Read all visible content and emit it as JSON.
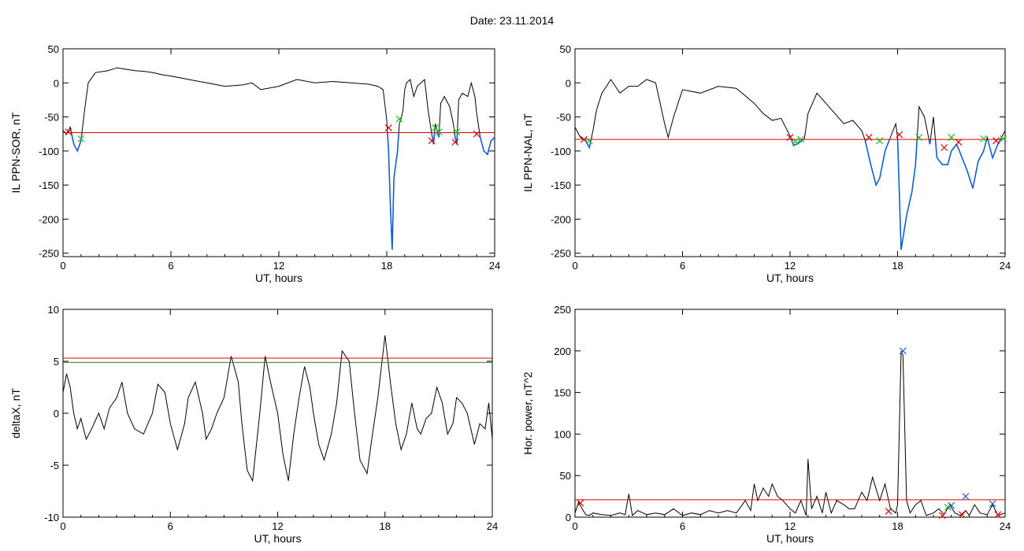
{
  "figure": {
    "title": "Date:  23.11.2014"
  },
  "colors": {
    "signal": "#000000",
    "threshold": "#e00000",
    "threshold2": "#2e7d32",
    "below": "#1060d0",
    "marker_red": "#e00000",
    "marker_green": "#22bb22",
    "marker_blue": "#2060d0"
  },
  "chart_data": [
    {
      "id": "il-sor",
      "type": "line",
      "ylabel": "IL PPN-SOR, nT",
      "xlabel": "UT, hours",
      "xlim": [
        0,
        24
      ],
      "ylim": [
        -255,
        50
      ],
      "xticks": [
        0,
        6,
        12,
        18,
        24
      ],
      "yticks": [
        50,
        0,
        -50,
        -100,
        -150,
        -200,
        -250
      ],
      "threshold": -73,
      "series": [
        {
          "x": [
            0,
            0.2,
            0.4,
            0.6,
            0.8,
            1.0,
            1.2,
            1.4,
            1.8,
            2.5,
            3.0,
            3.5,
            4.0,
            4.5,
            5.0,
            5.5,
            6.0,
            7.0,
            8.0,
            9.0,
            10.0,
            10.5,
            11.0,
            12.0,
            13.0,
            14.0,
            15.0,
            16.0,
            17.0,
            17.5,
            17.8,
            18.0,
            18.1,
            18.2,
            18.3,
            18.4,
            18.5,
            18.6,
            18.7,
            18.8,
            18.9,
            19.0,
            19.1,
            19.3,
            19.5,
            19.7,
            19.9,
            20.1,
            20.3,
            20.5,
            20.6,
            20.7,
            20.8,
            20.9,
            21.0,
            21.2,
            21.5,
            21.7,
            21.8,
            21.9,
            22.0,
            22.2,
            22.5,
            22.7,
            22.9,
            23.0,
            23.2,
            23.4,
            23.6,
            23.8,
            24.0
          ],
          "y": [
            -70,
            -75,
            -65,
            -90,
            -100,
            -85,
            -40,
            0,
            15,
            18,
            22,
            20,
            18,
            17,
            15,
            12,
            10,
            5,
            0,
            -5,
            -3,
            0,
            -10,
            -5,
            5,
            0,
            2,
            0,
            -2,
            -5,
            -10,
            -55,
            -100,
            -180,
            -245,
            -140,
            -120,
            -100,
            -60,
            -52,
            -40,
            -10,
            0,
            5,
            -20,
            -5,
            0,
            5,
            -40,
            -75,
            -90,
            -60,
            -70,
            -80,
            -30,
            -20,
            -35,
            -60,
            -80,
            -90,
            -25,
            -15,
            -20,
            0,
            -20,
            -45,
            -80,
            -100,
            -105,
            -85,
            -80
          ]
        }
      ],
      "markers": [
        {
          "x": 0.3,
          "y": -72,
          "color": "red"
        },
        {
          "x": 1.0,
          "y": -82,
          "color": "green"
        },
        {
          "x": 18.1,
          "y": -66,
          "color": "red"
        },
        {
          "x": 18.7,
          "y": -53,
          "color": "green"
        },
        {
          "x": 20.5,
          "y": -85,
          "color": "red"
        },
        {
          "x": 20.7,
          "y": -66,
          "color": "green"
        },
        {
          "x": 20.9,
          "y": -72,
          "color": "green"
        },
        {
          "x": 21.8,
          "y": -87,
          "color": "red"
        },
        {
          "x": 21.9,
          "y": -72,
          "color": "green"
        },
        {
          "x": 23.0,
          "y": -75,
          "color": "red"
        }
      ]
    },
    {
      "id": "il-nal",
      "type": "line",
      "ylabel": "IL PPN-NAL, nT",
      "xlabel": "UT, hours",
      "xlim": [
        0,
        24
      ],
      "ylim": [
        -255,
        50
      ],
      "xticks": [
        0,
        6,
        12,
        18,
        24
      ],
      "yticks": [
        50,
        0,
        -50,
        -100,
        -150,
        -200,
        -250
      ],
      "threshold": -83,
      "series": [
        {
          "x": [
            0,
            0.3,
            0.6,
            0.8,
            1.0,
            1.2,
            1.5,
            2.0,
            2.5,
            3.0,
            3.5,
            4.0,
            4.5,
            5.0,
            5.2,
            5.5,
            6.0,
            7.0,
            8.0,
            9.0,
            10.0,
            10.5,
            11.0,
            11.5,
            12.0,
            12.2,
            12.5,
            12.8,
            13.0,
            13.5,
            14.0,
            14.5,
            15.0,
            15.5,
            16.0,
            16.2,
            16.5,
            16.8,
            17.0,
            17.3,
            17.6,
            17.9,
            18.0,
            18.2,
            18.5,
            18.8,
            19.0,
            19.2,
            19.5,
            19.8,
            20.0,
            20.2,
            20.5,
            20.8,
            21.0,
            21.3,
            21.6,
            21.9,
            22.2,
            22.5,
            22.8,
            23.0,
            23.3,
            23.6,
            23.8,
            24.0
          ],
          "y": [
            -65,
            -80,
            -85,
            -95,
            -70,
            -40,
            -15,
            5,
            -15,
            -5,
            -5,
            5,
            0,
            -60,
            -80,
            -50,
            -10,
            -15,
            -5,
            -8,
            -30,
            -45,
            -55,
            -52,
            -78,
            -92,
            -88,
            -82,
            -45,
            -15,
            -30,
            -45,
            -60,
            -55,
            -70,
            -85,
            -120,
            -150,
            -140,
            -100,
            -80,
            -60,
            -80,
            -245,
            -195,
            -160,
            -120,
            -35,
            -50,
            -90,
            -50,
            -110,
            -120,
            -120,
            -100,
            -90,
            -110,
            -130,
            -155,
            -115,
            -100,
            -80,
            -110,
            -90,
            -80,
            -70
          ]
        }
      ],
      "markers": [
        {
          "x": 0.5,
          "y": -83,
          "color": "red"
        },
        {
          "x": 0.8,
          "y": -85,
          "color": "green"
        },
        {
          "x": 12.0,
          "y": -80,
          "color": "red"
        },
        {
          "x": 12.3,
          "y": -86,
          "color": "green"
        },
        {
          "x": 12.6,
          "y": -83,
          "color": "green"
        },
        {
          "x": 16.4,
          "y": -80,
          "color": "red"
        },
        {
          "x": 17.0,
          "y": -85,
          "color": "green"
        },
        {
          "x": 18.1,
          "y": -76,
          "color": "red"
        },
        {
          "x": 19.2,
          "y": -80,
          "color": "green"
        },
        {
          "x": 20.6,
          "y": -95,
          "color": "red"
        },
        {
          "x": 21.0,
          "y": -80,
          "color": "green"
        },
        {
          "x": 21.4,
          "y": -87,
          "color": "red"
        },
        {
          "x": 22.8,
          "y": -82,
          "color": "green"
        },
        {
          "x": 23.5,
          "y": -85,
          "color": "red"
        },
        {
          "x": 23.9,
          "y": -82,
          "color": "green"
        }
      ]
    },
    {
      "id": "deltax",
      "type": "line",
      "ylabel": "deltaX, nT",
      "xlabel": "UT, hours",
      "xlim": [
        0,
        24
      ],
      "ylim": [
        -10,
        10
      ],
      "xticks": [
        0,
        6,
        12,
        18,
        24
      ],
      "yticks": [
        10,
        5,
        0,
        -5,
        -10
      ],
      "threshold": 5.3,
      "threshold2": 4.9,
      "series": [
        {
          "x": [
            0,
            0.2,
            0.4,
            0.6,
            0.8,
            1.0,
            1.3,
            1.6,
            2.0,
            2.3,
            2.6,
            3.0,
            3.3,
            3.6,
            4.0,
            4.5,
            5.0,
            5.3,
            5.7,
            6.0,
            6.4,
            6.8,
            7.0,
            7.4,
            7.8,
            8.0,
            8.3,
            8.6,
            9.0,
            9.4,
            9.8,
            10.0,
            10.3,
            10.6,
            11.0,
            11.3,
            11.6,
            12.0,
            12.3,
            12.6,
            12.9,
            13.2,
            13.5,
            13.8,
            14.0,
            14.3,
            14.6,
            15.0,
            15.3,
            15.6,
            16.0,
            16.3,
            16.6,
            17.0,
            17.3,
            17.6,
            18.0,
            18.3,
            18.6,
            18.9,
            19.2,
            19.5,
            19.8,
            20.0,
            20.3,
            20.6,
            20.9,
            21.2,
            21.5,
            21.8,
            22.0,
            22.3,
            22.6,
            23.0,
            23.3,
            23.6,
            23.8,
            24.0
          ],
          "y": [
            2,
            3.8,
            2.5,
            0,
            -1.5,
            -0.5,
            -2.5,
            -1.5,
            0,
            -1.5,
            0.5,
            1.5,
            3.0,
            0,
            -1.5,
            -2.0,
            0,
            2.8,
            2.0,
            -1.0,
            -3.5,
            -1.0,
            1.5,
            3.0,
            0,
            -2.5,
            -1.5,
            0,
            1.5,
            5.5,
            3.0,
            -1.0,
            -5.5,
            -6.5,
            0,
            5.5,
            3.0,
            0,
            -4.0,
            -6.5,
            -2.0,
            1.5,
            4.5,
            2.5,
            0,
            -3.0,
            -4.5,
            -2.0,
            1.0,
            6.0,
            5.0,
            0,
            -4.5,
            -5.8,
            -2.0,
            1.5,
            7.5,
            3.0,
            -1.0,
            -3.5,
            -2.0,
            1.0,
            -1.5,
            -2.0,
            -0.5,
            0,
            2.5,
            1.0,
            -2.0,
            -1.0,
            1.5,
            1.0,
            0,
            -3.0,
            -1.0,
            -1.5,
            1.0,
            -2.5
          ]
        }
      ],
      "markers": []
    },
    {
      "id": "hor-power",
      "type": "line",
      "ylabel": "Hor. power, nT^2",
      "xlabel": "UT, hours",
      "xlim": [
        0,
        24
      ],
      "ylim": [
        0,
        250
      ],
      "xticks": [
        0,
        6,
        12,
        18,
        24
      ],
      "yticks": [
        250,
        200,
        150,
        100,
        50,
        0
      ],
      "threshold": 21,
      "series": [
        {
          "x": [
            0,
            0.2,
            0.4,
            0.6,
            0.8,
            1.0,
            1.5,
            2.0,
            2.5,
            2.8,
            3.0,
            3.2,
            3.5,
            4.0,
            4.5,
            5.0,
            5.5,
            6.0,
            6.5,
            7.0,
            7.5,
            8.0,
            8.5,
            9.0,
            9.5,
            9.8,
            10.0,
            10.2,
            10.5,
            10.8,
            11.0,
            11.3,
            11.6,
            12.0,
            12.3,
            12.6,
            12.9,
            13.0,
            13.2,
            13.5,
            13.8,
            14.0,
            14.3,
            14.6,
            15.0,
            15.3,
            15.6,
            16.0,
            16.3,
            16.6,
            17.0,
            17.3,
            17.6,
            17.9,
            18.0,
            18.2,
            18.3,
            18.5,
            18.7,
            19.0,
            19.3,
            19.6,
            20.0,
            20.3,
            20.6,
            20.9,
            21.2,
            21.5,
            21.8,
            22.0,
            22.3,
            22.6,
            23.0,
            23.3,
            23.6,
            24.0
          ],
          "y": [
            5,
            18,
            10,
            3,
            2,
            5,
            3,
            2,
            5,
            3,
            28,
            2,
            8,
            3,
            5,
            3,
            10,
            2,
            5,
            3,
            8,
            5,
            8,
            5,
            20,
            8,
            40,
            20,
            35,
            25,
            40,
            25,
            20,
            10,
            5,
            20,
            2,
            70,
            10,
            25,
            5,
            30,
            5,
            20,
            15,
            10,
            10,
            30,
            20,
            48,
            20,
            40,
            10,
            5,
            15,
            200,
            195,
            20,
            5,
            15,
            20,
            2,
            5,
            10,
            3,
            15,
            5,
            2,
            8,
            2,
            15,
            5,
            3,
            15,
            2,
            5
          ]
        }
      ],
      "markers": [
        {
          "x": 0.3,
          "y": 17,
          "color": "red"
        },
        {
          "x": 18.3,
          "y": 200,
          "color": "blue"
        },
        {
          "x": 17.5,
          "y": 7,
          "color": "red"
        },
        {
          "x": 20.5,
          "y": 2,
          "color": "red"
        },
        {
          "x": 20.8,
          "y": 12,
          "color": "green"
        },
        {
          "x": 21.0,
          "y": 14,
          "color": "blue"
        },
        {
          "x": 21.6,
          "y": 3,
          "color": "red"
        },
        {
          "x": 21.8,
          "y": 25,
          "color": "blue"
        },
        {
          "x": 23.3,
          "y": 16,
          "color": "blue"
        },
        {
          "x": 23.6,
          "y": 3,
          "color": "red"
        }
      ]
    }
  ]
}
